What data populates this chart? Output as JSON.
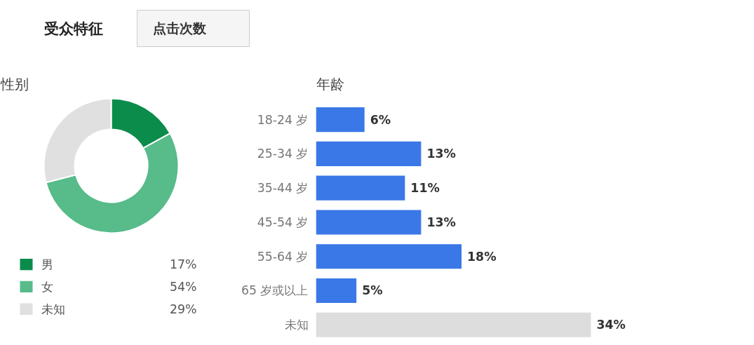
{
  "chart_data": [
    {
      "type": "other",
      "title": "受众特征",
      "annotations": [
        "点击次数"
      ]
    },
    {
      "type": "donut",
      "title": "性别",
      "categories": [
        "男",
        "女",
        "未知"
      ],
      "values": [
        17,
        54,
        29
      ],
      "colors": [
        "#0b8c4b",
        "#57bb8a",
        "#e0e0e0"
      ],
      "value_labels": [
        "17%",
        "54%",
        "29%"
      ],
      "legend": "bottom"
    },
    {
      "type": "bar",
      "orientation": "horizontal",
      "title": "年龄",
      "categories": [
        "18-24 岁",
        "25-34 岁",
        "35-44 岁",
        "45-54 岁",
        "55-64 岁",
        "65 岁或以上",
        "未知"
      ],
      "values": [
        6,
        13,
        11,
        13,
        18,
        5,
        34
      ],
      "colors": [
        "#3b78e7",
        "#3b78e7",
        "#3b78e7",
        "#3b78e7",
        "#3b78e7",
        "#3b78e7",
        "#dddddd"
      ],
      "value_labels": [
        "6%",
        "13%",
        "11%",
        "13%",
        "18%",
        "5%",
        "34%"
      ]
    }
  ]
}
